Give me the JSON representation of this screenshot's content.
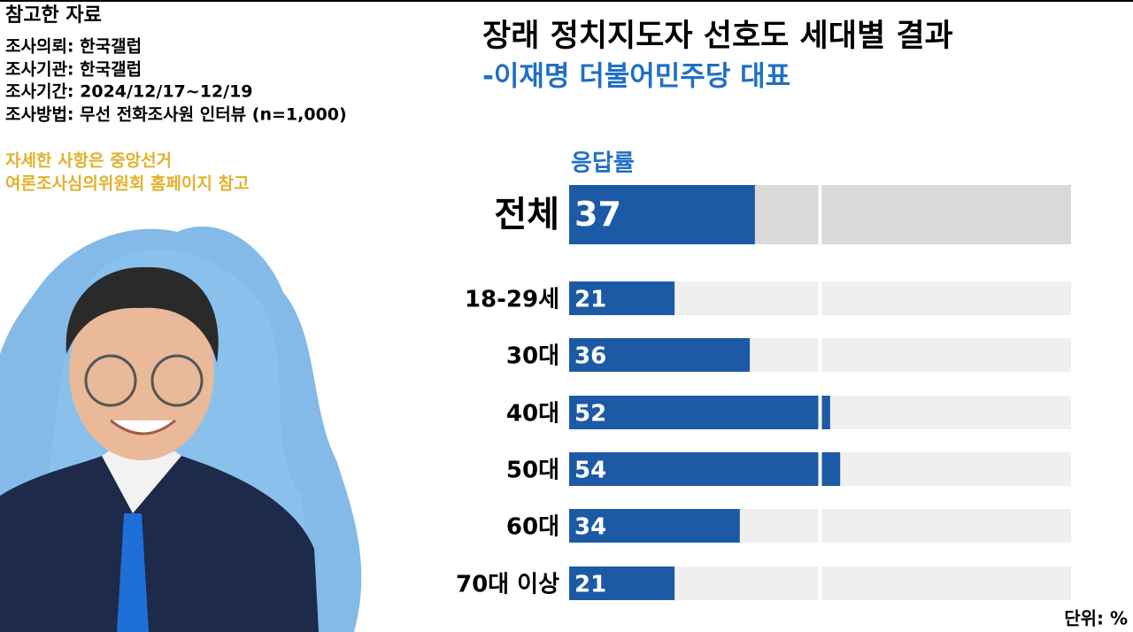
{
  "source": {
    "heading": "참고한 자료",
    "lines": [
      "조사의뢰: 한국갤럽",
      "조사기관: 한국갤럽",
      "조사기간: 2024/12/17~12/19",
      "조사방법: 무선 전화조사원 인터뷰 (n=1,000)"
    ],
    "note": [
      "자세한 사항은 중앙선거",
      "여론조사심의위원회 홈페이지 참고"
    ]
  },
  "chart_data": {
    "type": "bar",
    "orientation": "horizontal",
    "title": "장래 정치지도자 선호도 세대별 결과",
    "subtitle": "-이재명 더불어민주당 대표",
    "value_header": "응답률",
    "unit_label": "단위: %",
    "categories": [
      "전체",
      "18-29세",
      "30대",
      "40대",
      "50대",
      "60대",
      "70대 이상"
    ],
    "values": [
      37,
      21,
      36,
      52,
      54,
      34,
      21
    ],
    "color": "#1c5aa6",
    "xlim": [
      0,
      100
    ]
  }
}
